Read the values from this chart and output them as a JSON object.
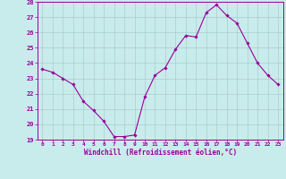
{
  "hours": [
    0,
    1,
    2,
    3,
    4,
    5,
    6,
    7,
    8,
    9,
    10,
    11,
    12,
    13,
    14,
    15,
    16,
    17,
    18,
    19,
    20,
    21,
    22,
    23
  ],
  "values": [
    23.6,
    23.4,
    23.0,
    22.6,
    21.5,
    20.9,
    20.2,
    19.2,
    19.2,
    19.3,
    21.8,
    23.2,
    23.7,
    24.9,
    25.8,
    25.7,
    27.3,
    27.8,
    27.1,
    26.6,
    25.3,
    24.0,
    23.2,
    22.6
  ],
  "line_color": "#990099",
  "marker_color": "#990099",
  "bg_color": "#c8ecec",
  "grid_color": "#aacccc",
  "axis_color": "#990099",
  "tick_color": "#990099",
  "xlabel": "Windchill (Refroidissement éolien,°C)",
  "ylim": [
    19,
    28
  ],
  "yticks": [
    19,
    20,
    21,
    22,
    23,
    24,
    25,
    26,
    27,
    28
  ],
  "xticks": [
    0,
    1,
    2,
    3,
    4,
    5,
    6,
    7,
    8,
    9,
    10,
    11,
    12,
    13,
    14,
    15,
    16,
    17,
    18,
    19,
    20,
    21,
    22,
    23
  ],
  "figsize": [
    3.2,
    2.0
  ],
  "dpi": 100
}
